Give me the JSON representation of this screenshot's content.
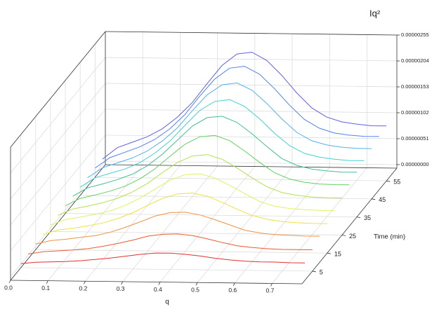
{
  "chart_data": {
    "type": "waterfall3d",
    "x_label": "q",
    "z_label": "Time (min)",
    "y_label": "Iq²",
    "x": [
      0,
      0.04,
      0.08,
      0.12,
      0.16,
      0.2,
      0.24,
      0.28,
      0.32,
      0.36,
      0.4,
      0.44,
      0.48,
      0.52,
      0.56,
      0.6,
      0.64,
      0.68,
      0.72,
      0.76
    ],
    "xlim": [
      0,
      0.78
    ],
    "xticks": [
      {
        "value": 0,
        "label": "0.0"
      },
      0.1,
      0.2,
      0.3,
      0.4,
      0.5,
      0.6,
      0.7
    ],
    "zlim": [
      -2,
      62
    ],
    "zticks": [
      5,
      15,
      25,
      35,
      45,
      55
    ],
    "ylim": [
      -7e-08,
      2.55e-06
    ],
    "yticks": [
      {
        "value": 0,
        "label": "0.00000000"
      },
      {
        "value": 5.1e-07,
        "label": "0.00000051"
      },
      {
        "value": 1.02e-06,
        "label": "0.00000102"
      },
      {
        "value": 1.53e-06,
        "label": "0.00000153"
      },
      {
        "value": 2.04e-06,
        "label": "0.00000204"
      },
      {
        "value": 2.55e-06,
        "label": "0.00000255"
      }
    ],
    "grid": true,
    "series": [
      {
        "z": 5,
        "color": "#e03030",
        "values": [
          1e-08,
          4e-08,
          5e-08,
          6e-08,
          8e-08,
          1.1e-07,
          1.4e-07,
          1.8e-07,
          2.2e-07,
          2.5e-07,
          2.5e-07,
          2.3e-07,
          2e-07,
          1.6e-07,
          1.3e-07,
          1.1e-07,
          1e-07,
          1e-07,
          9e-08,
          9e-08
        ]
      },
      {
        "z": 10,
        "color": "#e85a30",
        "values": [
          2e-08,
          7e-08,
          9e-08,
          1.1e-07,
          1.4e-07,
          1.9e-07,
          2.5e-07,
          3.2e-07,
          4e-07,
          4.4e-07,
          4.5e-07,
          4.2e-07,
          3.6e-07,
          2.9e-07,
          2.3e-07,
          2e-07,
          1.8e-07,
          1.7e-07,
          1.7e-07,
          1.7e-07
        ]
      },
      {
        "z": 15,
        "color": "#f09040",
        "values": [
          4e-08,
          1.1e-07,
          1.4e-07,
          1.8e-07,
          2.2e-07,
          2.9e-07,
          3.9e-07,
          5e-07,
          6.2e-07,
          6.9e-07,
          7e-07,
          6.5e-07,
          5.6e-07,
          4.6e-07,
          3.6e-07,
          3.1e-07,
          2.8e-07,
          2.7e-07,
          2.6e-07,
          2.6e-07
        ]
      },
      {
        "z": 20,
        "color": "#f0e040",
        "values": [
          5e-08,
          1.4e-07,
          1.8e-07,
          2.3e-07,
          2.9e-07,
          3.8e-07,
          5e-07,
          6.5e-07,
          7.9e-07,
          8.8e-07,
          9e-07,
          8.4e-07,
          7.2e-07,
          5.9e-07,
          4.7e-07,
          4e-07,
          3.6e-07,
          3.4e-07,
          3.3e-07,
          3.3e-07
        ]
      },
      {
        "z": 25,
        "color": "#e0f060",
        "values": [
          6e-08,
          1.7e-07,
          2.2e-07,
          2.8e-07,
          3.5e-07,
          4.6e-07,
          6.1e-07,
          7.9e-07,
          9.7e-07,
          1.08e-06,
          1.1e-06,
          1.02e-06,
          8.8e-07,
          7.2e-07,
          5.7e-07,
          4.8e-07,
          4.4e-07,
          4.2e-07,
          4.1e-07,
          4.1e-07
        ]
      },
      {
        "z": 30,
        "color": "#b0e050",
        "values": [
          7e-08,
          2e-07,
          2.6e-07,
          3.3e-07,
          4.2e-07,
          5.5e-07,
          7.2e-07,
          9.4e-07,
          1.14e-06,
          1.27e-06,
          1.3e-06,
          1.21e-06,
          1.04e-06,
          8.5e-07,
          6.8e-07,
          5.7e-07,
          5.2e-07,
          4.9e-07,
          4.8e-07,
          4.8e-07
        ]
      },
      {
        "z": 35,
        "color": "#60d060",
        "values": [
          8e-08,
          2.3e-07,
          3e-07,
          3.8e-07,
          4.8e-07,
          6.3e-07,
          8.3e-07,
          1.08e-06,
          1.32e-06,
          1.47e-06,
          1.5e-06,
          1.4e-06,
          1.2e-06,
          9.8e-07,
          7.8e-07,
          6.6e-07,
          6e-07,
          5.7e-07,
          5.6e-07,
          5.6e-07
        ]
      },
      {
        "z": 40,
        "color": "#40c090",
        "values": [
          9e-08,
          2.6e-07,
          3.4e-07,
          4.3e-07,
          5.4e-07,
          7.1e-07,
          9.4e-07,
          1.22e-06,
          1.5e-06,
          1.67e-06,
          1.7e-06,
          1.58e-06,
          1.36e-06,
          1.11e-06,
          8.8e-07,
          7.5e-07,
          6.8e-07,
          6.5e-07,
          6.3e-07,
          6.3e-07
        ]
      },
      {
        "z": 45,
        "color": "#40d0d0",
        "values": [
          9e-08,
          2.8e-07,
          3.7e-07,
          4.6e-07,
          5.9e-07,
          7.8e-07,
          1.02e-06,
          1.33e-06,
          1.63e-06,
          1.81e-06,
          1.85e-06,
          1.72e-06,
          1.48e-06,
          1.2e-06,
          9.6e-07,
          8.1e-07,
          7.4e-07,
          7e-07,
          6.8e-07,
          6.8e-07
        ]
      },
      {
        "z": 50,
        "color": "#50b0f0",
        "values": [
          1e-07,
          3e-07,
          4e-07,
          5e-07,
          6.4e-07,
          8.4e-07,
          1.1e-06,
          1.44e-06,
          1.76e-06,
          1.96e-06,
          2e-06,
          1.86e-06,
          1.6e-06,
          1.3e-06,
          1.04e-06,
          8.8e-07,
          8e-07,
          7.6e-07,
          7.4e-07,
          7.4e-07
        ]
      },
      {
        "z": 55,
        "color": "#5080f0",
        "values": [
          1.1e-07,
          3.2e-07,
          4.3e-07,
          5.4e-07,
          6.9e-07,
          9e-07,
          1.18e-06,
          1.55e-06,
          1.89e-06,
          2.11e-06,
          2.15e-06,
          2e-06,
          1.72e-06,
          1.4e-06,
          1.12e-06,
          9.5e-07,
          8.6e-07,
          8.2e-07,
          8e-07,
          8e-07
        ]
      },
      {
        "z": 60,
        "color": "#6060e0",
        "values": [
          1.1e-07,
          3.4e-07,
          4.5e-07,
          5.6e-07,
          7.2e-07,
          9.5e-07,
          1.24e-06,
          1.62e-06,
          1.98e-06,
          2.21e-06,
          2.25e-06,
          2.09e-06,
          1.8e-06,
          1.46e-06,
          1.17e-06,
          9.9e-07,
          9e-07,
          8.6e-07,
          8.3e-07,
          8.3e-07
        ]
      }
    ]
  }
}
